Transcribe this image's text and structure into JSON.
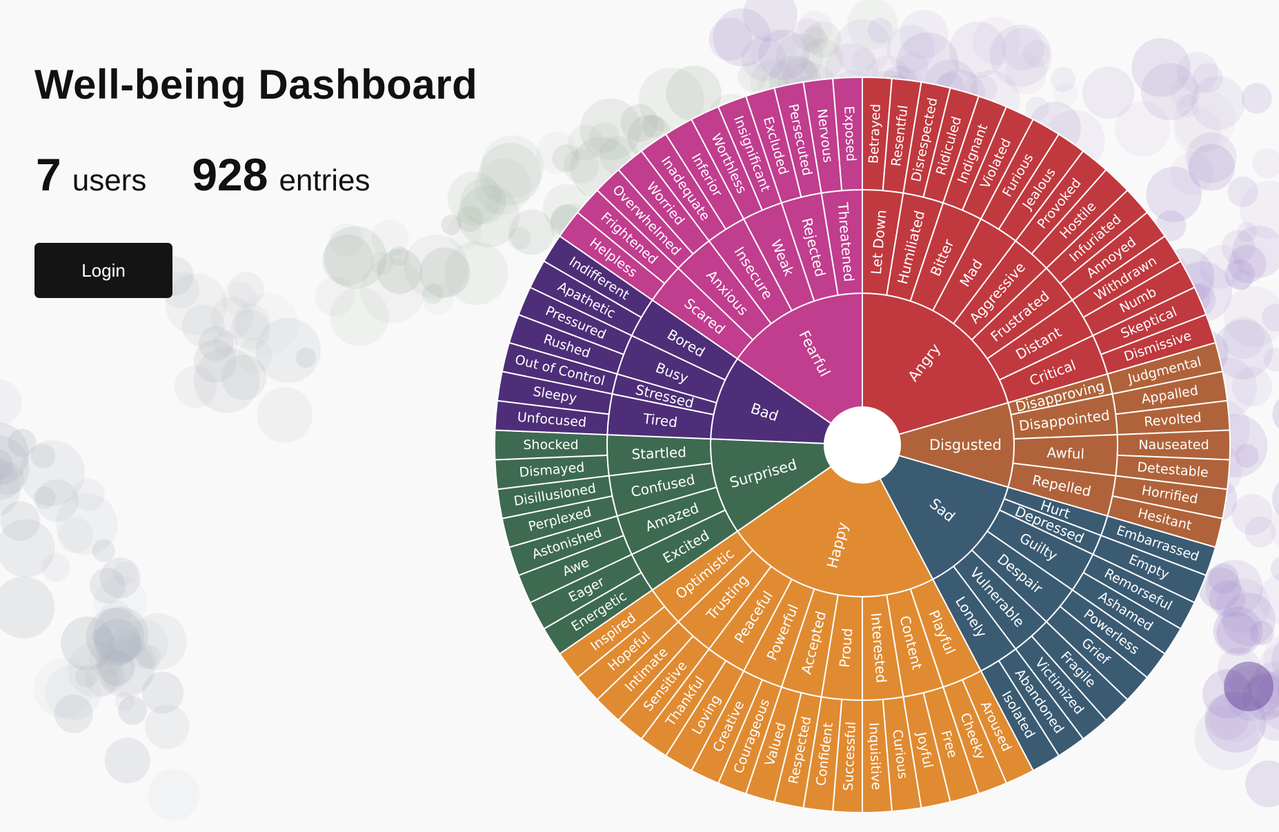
{
  "header": {
    "title": "Well-being Dashboard"
  },
  "stats": {
    "users_count": "7",
    "users_label": "users",
    "entries_count": "928",
    "entries_label": "entries"
  },
  "actions": {
    "login_label": "Login"
  },
  "chart_data": {
    "type": "sunburst",
    "title": "",
    "categories": [
      {
        "name": "Angry",
        "color": "#c0393f",
        "children": [
          {
            "name": "Let Down",
            "children": [
              "Betrayed",
              "Resentful"
            ]
          },
          {
            "name": "Humiliated",
            "children": [
              "Disrespected",
              "Ridiculed"
            ]
          },
          {
            "name": "Bitter",
            "children": [
              "Indignant",
              "Violated"
            ]
          },
          {
            "name": "Mad",
            "children": [
              "Furious",
              "Jealous"
            ]
          },
          {
            "name": "Aggressive",
            "children": [
              "Provoked",
              "Hostile"
            ]
          },
          {
            "name": "Frustrated",
            "children": [
              "Infuriated",
              "Annoyed"
            ]
          },
          {
            "name": "Distant",
            "children": [
              "Withdrawn",
              "Numb"
            ]
          },
          {
            "name": "Critical",
            "children": [
              "Skeptical",
              "Dismissive"
            ]
          }
        ]
      },
      {
        "name": "Disgusted",
        "color": "#b0633a",
        "children": [
          {
            "name": "Disapproving",
            "children": [
              "Judgmental"
            ]
          },
          {
            "name": "Disappointed",
            "children": [
              "Appalled",
              "Revolted"
            ]
          },
          {
            "name": "Awful",
            "children": [
              "Nauseated",
              "Detestable"
            ]
          },
          {
            "name": "Repelled",
            "children": [
              "Horrified",
              "Hesitant"
            ]
          }
        ]
      },
      {
        "name": "Sad",
        "color": "#3b5b73",
        "children": [
          {
            "name": "Hurt",
            "children": [
              "Embarrassed"
            ]
          },
          {
            "name": "Depressed",
            "children": [
              "Empty"
            ]
          },
          {
            "name": "Guilty",
            "children": [
              "Remorseful",
              "Ashamed"
            ]
          },
          {
            "name": "Despair",
            "children": [
              "Powerless",
              "Grief"
            ]
          },
          {
            "name": "Vulnerable",
            "children": [
              "Fragile",
              "Victimized"
            ]
          },
          {
            "name": "Lonely",
            "children": [
              "Abandoned",
              "Isolated"
            ]
          }
        ]
      },
      {
        "name": "Happy",
        "color": "#e08b32",
        "children": [
          {
            "name": "Playful",
            "children": [
              "Aroused",
              "Cheeky"
            ]
          },
          {
            "name": "Content",
            "children": [
              "Free",
              "Joyful"
            ]
          },
          {
            "name": "Interested",
            "children": [
              "Curious",
              "Inquisitive"
            ]
          },
          {
            "name": "Proud",
            "children": [
              "Successful",
              "Confident"
            ]
          },
          {
            "name": "Accepted",
            "children": [
              "Respected",
              "Valued"
            ]
          },
          {
            "name": "Powerful",
            "children": [
              "Courageous",
              "Creative"
            ]
          },
          {
            "name": "Peaceful",
            "children": [
              "Loving",
              "Thankful"
            ]
          },
          {
            "name": "Trusting",
            "children": [
              "Sensitive",
              "Intimate"
            ]
          },
          {
            "name": "Optimistic",
            "children": [
              "Hopeful",
              "Inspired"
            ]
          }
        ]
      },
      {
        "name": "Surprised",
        "color": "#3e6a52",
        "children": [
          {
            "name": "Excited",
            "children": [
              "Energetic",
              "Eager"
            ]
          },
          {
            "name": "Amazed",
            "children": [
              "Awe",
              "Astonished"
            ]
          },
          {
            "name": "Confused",
            "children": [
              "Perplexed",
              "Disillusioned"
            ]
          },
          {
            "name": "Startled",
            "children": [
              "Dismayed",
              "Shocked"
            ]
          }
        ]
      },
      {
        "name": "Bad",
        "color": "#4e2e78",
        "children": [
          {
            "name": "Tired",
            "children": [
              "Unfocused",
              "Sleepy"
            ]
          },
          {
            "name": "Stressed",
            "children": [
              "Out of Control"
            ]
          },
          {
            "name": "Busy",
            "children": [
              "Rushed",
              "Pressured"
            ]
          },
          {
            "name": "Bored",
            "children": [
              "Apathetic",
              "Indifferent"
            ]
          }
        ]
      },
      {
        "name": "Fearful",
        "color": "#c13d8e",
        "children": [
          {
            "name": "Scared",
            "children": [
              "Helpless",
              "Frightened"
            ]
          },
          {
            "name": "Anxious",
            "children": [
              "Overwhelmed",
              "Worried"
            ]
          },
          {
            "name": "Insecure",
            "children": [
              "Inadequate",
              "Inferior"
            ]
          },
          {
            "name": "Weak",
            "children": [
              "Worthless",
              "Insignificant"
            ]
          },
          {
            "name": "Rejected",
            "children": [
              "Excluded",
              "Persecuted"
            ]
          },
          {
            "name": "Threatened",
            "children": [
              "Nervous",
              "Exposed"
            ]
          }
        ]
      }
    ]
  }
}
